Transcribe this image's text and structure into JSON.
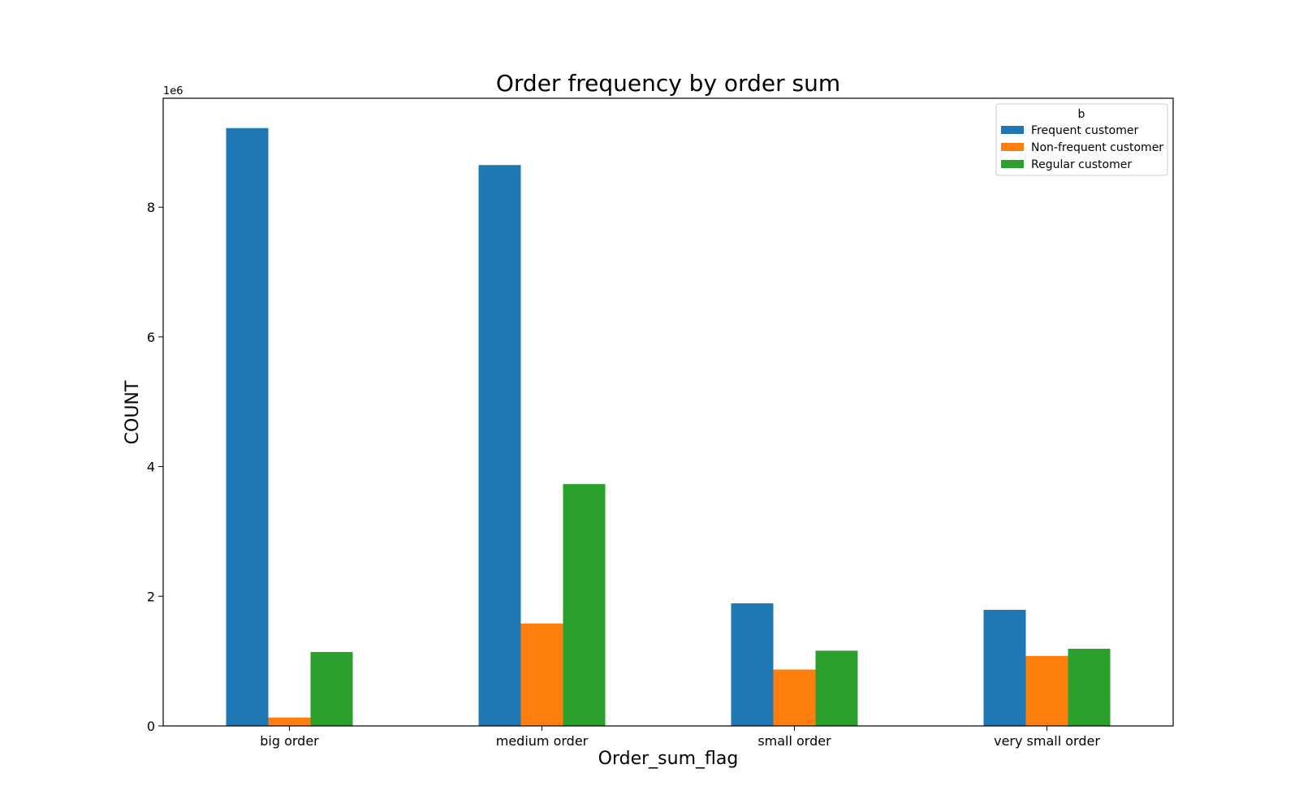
{
  "chart_data": {
    "type": "bar",
    "title": "Order frequency by order sum",
    "xlabel": "Order_sum_flag",
    "ylabel": "COUNT",
    "y_offset_label": "1e6",
    "y_scale": 1000000,
    "categories": [
      "big order",
      "medium order",
      "small order",
      "very small order"
    ],
    "series": [
      {
        "name": "Frequent customer",
        "color": "#1f77b4",
        "values": [
          9220000,
          8650000,
          1890000,
          1790000
        ]
      },
      {
        "name": "Non-frequent customer",
        "color": "#ff7f0e",
        "values": [
          130000,
          1580000,
          870000,
          1080000
        ]
      },
      {
        "name": "Regular customer",
        "color": "#2ca02c",
        "values": [
          1140000,
          3730000,
          1160000,
          1190000
        ]
      }
    ],
    "ylim": [
      0,
      9680000
    ],
    "yticks": [
      0,
      2000000,
      4000000,
      6000000,
      8000000
    ],
    "ytick_labels": [
      "0",
      "2",
      "4",
      "6",
      "8"
    ],
    "legend": {
      "title": "b",
      "placement": "top-right"
    },
    "grid": false
  }
}
